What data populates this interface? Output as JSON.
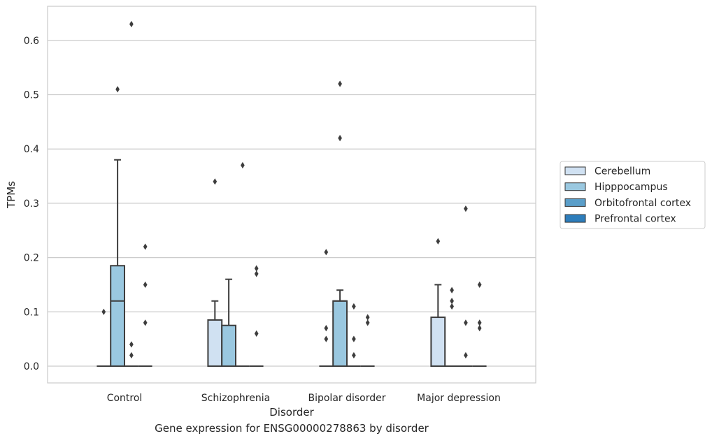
{
  "caption": "Gene expression for ENSG00000278863 by disorder",
  "chart_data": {
    "type": "box",
    "xlabel": "Disorder",
    "ylabel": "TPMs",
    "ylim": [
      -0.03,
      0.66
    ],
    "yticks": [
      0.0,
      0.1,
      0.2,
      0.3,
      0.4,
      0.5,
      0.6
    ],
    "ytick_labels": [
      "0.0",
      "0.1",
      "0.2",
      "0.3",
      "0.4",
      "0.5",
      "0.6"
    ],
    "categories": [
      "Control",
      "Schizophrenia",
      "Bipolar disorder",
      "Major depression"
    ],
    "grid": "horizontal",
    "legend_position": "right",
    "series": [
      {
        "name": "Cerebellum",
        "color": "#d0e1f2",
        "boxes": [
          {
            "q1": 0,
            "median": 0,
            "q3": 0,
            "whislo": 0,
            "whishi": 0,
            "fliers": [
              0.1
            ]
          },
          {
            "q1": 0,
            "median": 0,
            "q3": 0.085,
            "whislo": 0,
            "whishi": 0.12,
            "fliers": [
              0.34
            ]
          },
          {
            "q1": 0,
            "median": 0,
            "q3": 0,
            "whislo": 0,
            "whishi": 0,
            "fliers": [
              0.21,
              0.07,
              0.05
            ]
          },
          {
            "q1": 0,
            "median": 0,
            "q3": 0.09,
            "whislo": 0,
            "whishi": 0.15,
            "fliers": [
              0.23
            ]
          }
        ]
      },
      {
        "name": "Hipppocampus",
        "color": "#9ac8e0",
        "boxes": [
          {
            "q1": 0,
            "median": 0.12,
            "q3": 0.185,
            "whislo": 0,
            "whishi": 0.38,
            "fliers": [
              0.51
            ]
          },
          {
            "q1": 0,
            "median": 0,
            "q3": 0.075,
            "whislo": 0,
            "whishi": 0.16,
            "fliers": []
          },
          {
            "q1": 0,
            "median": 0.12,
            "q3": 0.12,
            "whislo": 0,
            "whishi": 0.14,
            "fliers": [
              0.52,
              0.42
            ]
          },
          {
            "q1": 0,
            "median": 0,
            "q3": 0,
            "whislo": 0,
            "whishi": 0,
            "fliers": [
              0.14,
              0.12,
              0.11
            ]
          }
        ]
      },
      {
        "name": "Orbitofrontal cortex",
        "color": "#5a9ec9",
        "boxes": [
          {
            "q1": 0,
            "median": 0,
            "q3": 0,
            "whislo": 0,
            "whishi": 0,
            "fliers": [
              0.63,
              0.04,
              0.02
            ]
          },
          {
            "q1": 0,
            "median": 0,
            "q3": 0,
            "whislo": 0,
            "whishi": 0,
            "fliers": [
              0.37
            ]
          },
          {
            "q1": 0,
            "median": 0,
            "q3": 0,
            "whislo": 0,
            "whishi": 0,
            "fliers": [
              0.11,
              0.05,
              0.02
            ]
          },
          {
            "q1": 0,
            "median": 0,
            "q3": 0,
            "whislo": 0,
            "whishi": 0,
            "fliers": [
              0.29,
              0.08,
              0.02
            ]
          }
        ]
      },
      {
        "name": "Prefrontal cortex",
        "color": "#2d7dbb",
        "boxes": [
          {
            "q1": 0,
            "median": 0,
            "q3": 0,
            "whislo": 0,
            "whishi": 0,
            "fliers": [
              0.22,
              0.15,
              0.08
            ]
          },
          {
            "q1": 0,
            "median": 0,
            "q3": 0,
            "whislo": 0,
            "whishi": 0,
            "fliers": [
              0.18,
              0.17,
              0.06
            ]
          },
          {
            "q1": 0,
            "median": 0,
            "q3": 0,
            "whislo": 0,
            "whishi": 0,
            "fliers": [
              0.09,
              0.08
            ]
          },
          {
            "q1": 0,
            "median": 0,
            "q3": 0,
            "whislo": 0,
            "whishi": 0,
            "fliers": [
              0.15,
              0.08,
              0.07
            ]
          }
        ]
      }
    ]
  }
}
